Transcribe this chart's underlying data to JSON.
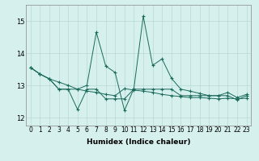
{
  "title": "",
  "xlabel": "Humidex (Indice chaleur)",
  "ylabel": "",
  "background_color": "#d6f0ee",
  "grid_color": "#b8d8d4",
  "line_color": "#1a6b5a",
  "x_ticks": [
    0,
    1,
    2,
    3,
    4,
    5,
    6,
    7,
    8,
    9,
    10,
    11,
    12,
    13,
    14,
    15,
    16,
    17,
    18,
    19,
    20,
    21,
    22,
    23
  ],
  "ylim": [
    11.75,
    15.5
  ],
  "yticks": [
    12,
    13,
    14,
    15
  ],
  "series1": [
    13.55,
    13.35,
    13.2,
    13.1,
    13.0,
    12.88,
    12.82,
    12.78,
    12.72,
    12.68,
    12.9,
    12.85,
    12.82,
    12.78,
    12.72,
    12.68,
    12.65,
    12.62,
    12.62,
    12.6,
    12.58,
    12.6,
    12.58,
    12.6
  ],
  "series2": [
    13.55,
    13.35,
    13.2,
    12.88,
    12.88,
    12.88,
    13.0,
    14.65,
    13.6,
    13.4,
    12.22,
    12.9,
    15.15,
    13.62,
    13.82,
    13.22,
    12.88,
    12.82,
    12.75,
    12.68,
    12.68,
    12.78,
    12.62,
    12.72
  ],
  "series3": [
    13.55,
    13.35,
    13.2,
    12.88,
    12.88,
    12.25,
    12.88,
    12.88,
    12.58,
    12.58,
    12.58,
    12.88,
    12.88,
    12.88,
    12.88,
    12.88,
    12.68,
    12.68,
    12.68,
    12.68,
    12.68,
    12.68,
    12.55,
    12.68
  ],
  "tick_fontsize": 5.5,
  "xlabel_fontsize": 6.5
}
